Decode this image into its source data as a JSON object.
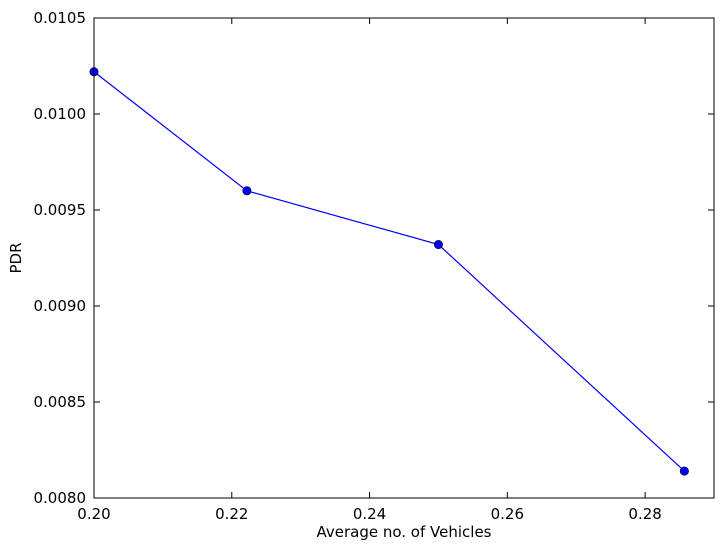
{
  "chart_data": {
    "type": "line",
    "title": "",
    "xlabel": "Average no. of Vehicles",
    "ylabel": "PDR",
    "xlim": [
      0.2,
      0.29
    ],
    "ylim": [
      0.008,
      0.0105
    ],
    "xticks": [
      "0.20",
      "0.22",
      "0.24",
      "0.26",
      "0.28"
    ],
    "yticks": [
      "0.0080",
      "0.0085",
      "0.0090",
      "0.0095",
      "0.0100",
      "0.0105"
    ],
    "grid": false,
    "series": [
      {
        "color": "#0000ff",
        "marker": "circle",
        "x": [
          0.2,
          0.2222,
          0.25,
          0.2857
        ],
        "y": [
          0.01022,
          0.0096,
          0.00932,
          0.00814
        ]
      }
    ]
  }
}
